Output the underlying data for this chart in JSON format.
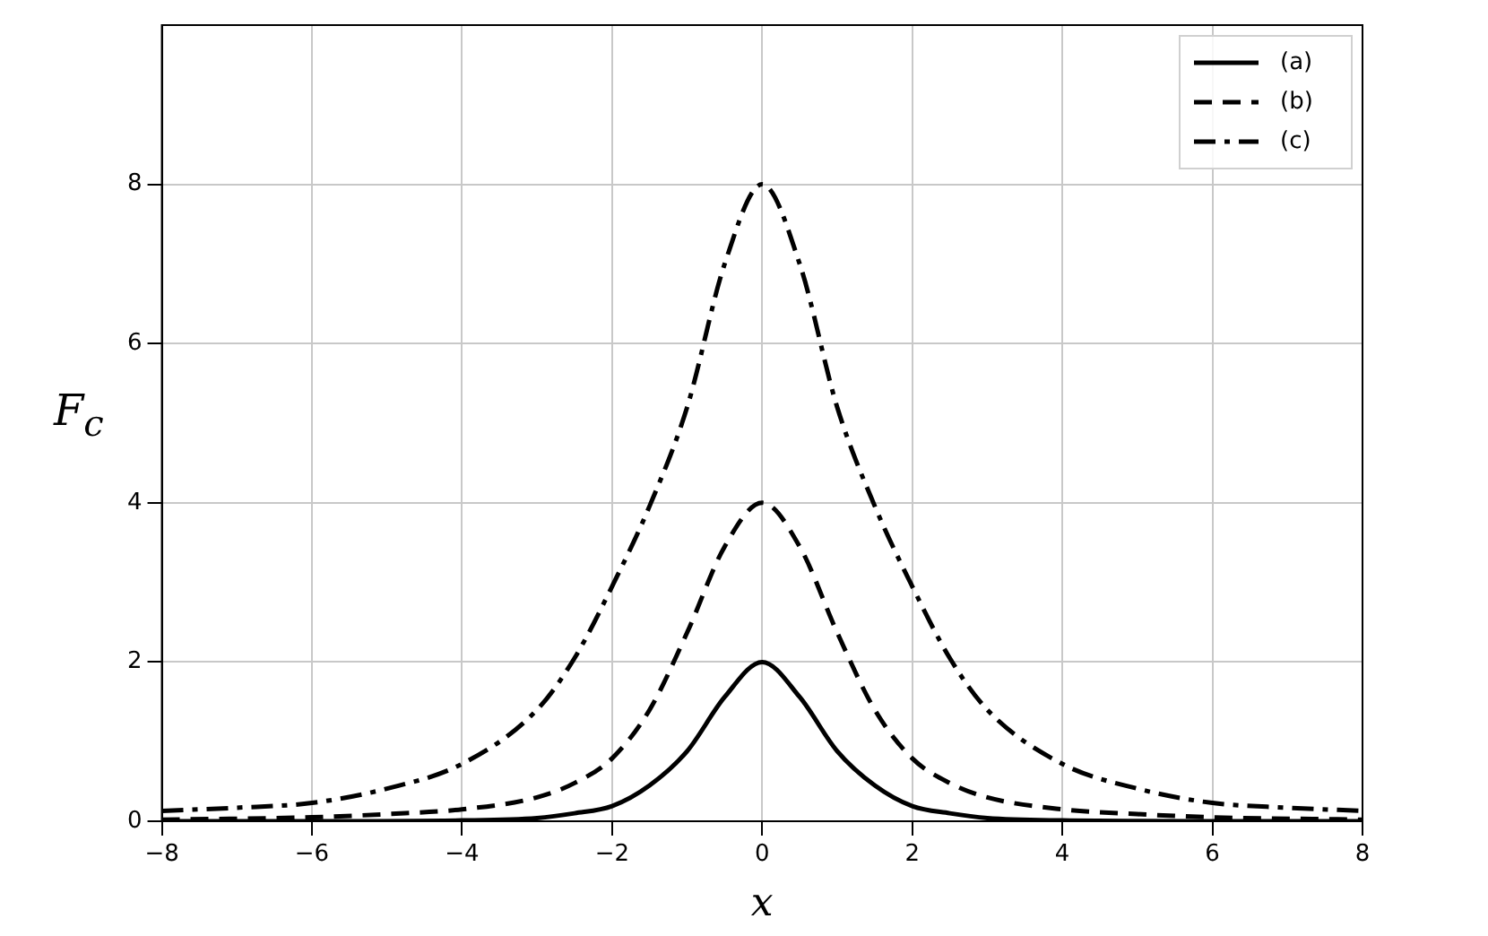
{
  "chart_data": {
    "type": "line",
    "xlabel": "x",
    "ylabel": "F$_{c}$",
    "xlim": [
      -8,
      8
    ],
    "xticks": [
      -8,
      -6,
      -4,
      -2,
      0,
      2,
      4,
      6,
      8
    ],
    "ylim": [
      0,
      10
    ],
    "yticks": [
      0,
      2,
      4,
      6,
      8
    ],
    "grid": true,
    "legend": "top right",
    "marker": "none",
    "series": [
      {
        "name": "(a)",
        "color": "#000000",
        "line_style": "solid",
        "x": [
          -8,
          -6,
          -4,
          -3,
          -2.5,
          -2,
          -1.5,
          -1,
          -0.5,
          0,
          0.5,
          1,
          1.5,
          2,
          2.5,
          3,
          4,
          6,
          8
        ],
        "values": [
          0,
          0,
          0.01,
          0.04,
          0.1,
          0.19,
          0.45,
          0.88,
          1.56,
          2,
          1.56,
          0.88,
          0.45,
          0.19,
          0.1,
          0.04,
          0.01,
          0,
          0
        ]
      },
      {
        "name": "(b)",
        "color": "#000000",
        "line_style": "dashed",
        "x": [
          -8,
          -6,
          -5,
          -4,
          -3,
          -2.5,
          -2,
          -1.5,
          -1,
          -0.5,
          0,
          0.5,
          1,
          1.5,
          2,
          2.5,
          3,
          4,
          5,
          6,
          8
        ],
        "values": [
          0.02,
          0.05,
          0.09,
          0.15,
          0.3,
          0.48,
          0.79,
          1.4,
          2.37,
          3.45,
          4,
          3.45,
          2.37,
          1.4,
          0.79,
          0.48,
          0.3,
          0.15,
          0.09,
          0.05,
          0.02
        ]
      },
      {
        "name": "(c)",
        "color": "#000000",
        "line_style": "dashdot",
        "x": [
          -8,
          -7,
          -6,
          -5,
          -4,
          -3,
          -2.5,
          -2,
          -1.5,
          -1,
          -0.5,
          0,
          0.5,
          1,
          1.5,
          2,
          2.5,
          3,
          4,
          5,
          6,
          7,
          8
        ],
        "values": [
          0.13,
          0.17,
          0.23,
          0.41,
          0.72,
          1.4,
          2.05,
          2.95,
          3.96,
          5.2,
          7.0,
          8,
          7.0,
          5.2,
          3.96,
          2.95,
          2.05,
          1.4,
          0.72,
          0.41,
          0.23,
          0.17,
          0.13
        ]
      }
    ]
  }
}
